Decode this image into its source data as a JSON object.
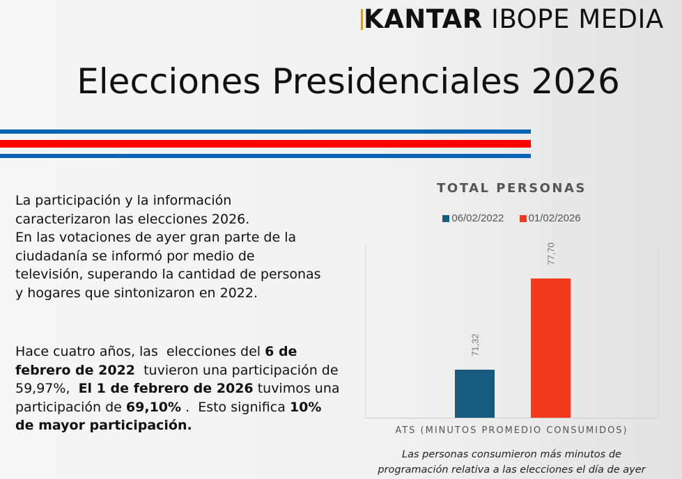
{
  "brand": {
    "logo_bold": "KANTAR",
    "logo_rest": "IBOPE MEDIA",
    "accent_gold": "#c9a227"
  },
  "header": {
    "title": "Elecciones Presidenciales 2026"
  },
  "stripes": {
    "blue": "#0a64b4",
    "red": "#ff0000"
  },
  "text": {
    "paragraph1": [
      "La participación y la información",
      "caracterizaron las  elecciones 2026.",
      "En las votaciones de ayer  gran parte de la",
      "ciudadanía se informó por medio de",
      "televisión,  superando la cantidad de personas",
      "y hogares que sintonizaron en 2022."
    ],
    "paragraph2": [
      [
        {
          "t": "Hace cuatro años, las  elecciones del "
        },
        {
          "t": "6 de",
          "b": true
        }
      ],
      [
        {
          "t": "febrero de 2022",
          "b": true
        },
        {
          "t": "  tuvieron una participación de"
        }
      ],
      [
        {
          "t": "59,97%,  "
        },
        {
          "t": "El 1 de febrero de 2026",
          "b": true
        },
        {
          "t": " tuvimos una"
        }
      ],
      [
        {
          "t": "participación de "
        },
        {
          "t": "69,10%",
          "b": true
        },
        {
          "t": " .  Esto significa "
        },
        {
          "t": "10%",
          "b": true
        }
      ],
      [
        {
          "t": "de mayor participación.",
          "b": true
        }
      ]
    ]
  },
  "chart_data": {
    "type": "bar",
    "title": "TOTAL PERSONAS",
    "categories": [
      "ATS (MINUTOS PROMEDIO CONSUMIDOS)"
    ],
    "xlabel": "ATS (MINUTOS PROMEDIO CONSUMIDOS)",
    "series": [
      {
        "name": "06/02/2022",
        "values": [
          71.32
        ],
        "label": "71,32",
        "color": "#175c80"
      },
      {
        "name": "01/02/2026",
        "values": [
          77.7
        ],
        "label": "77,70",
        "color": "#f23a1f"
      }
    ],
    "ylim": [
      68,
      80
    ],
    "grid": false,
    "legend": "top",
    "caption": [
      "Las personas consumieron más minutos de",
      "programación relativa a las elecciones el día de ayer"
    ]
  }
}
